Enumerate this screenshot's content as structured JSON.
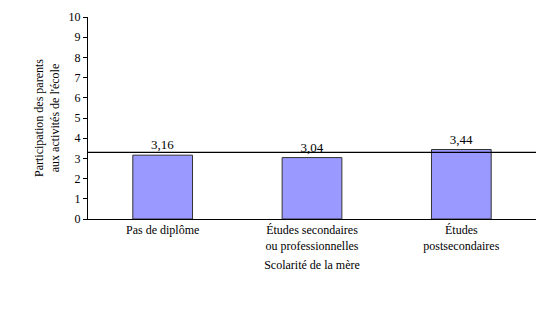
{
  "chart_data": {
    "type": "bar",
    "categories": [
      "Pas de diplôme",
      "Études secondaires\nou professionnelles",
      "Études\npostsecondaires"
    ],
    "values": [
      3.16,
      3.04,
      3.44
    ],
    "value_labels": [
      "3,16",
      "3,04",
      "3,44"
    ],
    "data_labels": true,
    "color": "#9999ff",
    "x_label": "Scolarité de la mère",
    "y_label": "Participation des parents\naux activités de l'école",
    "ylim": [
      0,
      10
    ],
    "yticks": [
      0,
      1,
      2,
      3,
      4,
      5,
      6,
      7,
      8,
      9,
      10
    ],
    "reference_line": 3.3,
    "grid": false
  }
}
